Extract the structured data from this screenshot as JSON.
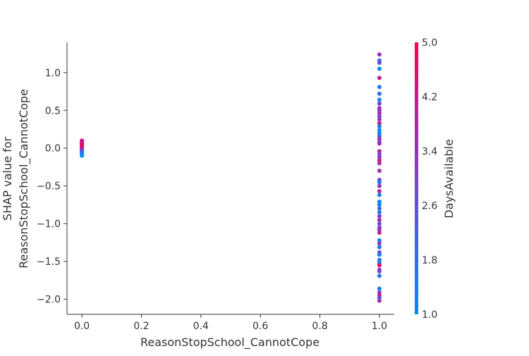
{
  "chart_data": {
    "type": "scatter",
    "title": "",
    "xlabel": "ReasonStopSchool_CannotCope",
    "ylabel_lines": [
      "SHAP value for",
      "ReasonStopSchool_CannotCope"
    ],
    "xlim": [
      -0.05,
      1.05
    ],
    "ylim": [
      -2.2,
      1.4
    ],
    "x_ticks": [
      0.0,
      0.2,
      0.4,
      0.6,
      0.8,
      1.0
    ],
    "x_tick_labels": [
      "0.0",
      "0.2",
      "0.4",
      "0.6",
      "0.8",
      "1.0"
    ],
    "y_ticks": [
      1.0,
      0.5,
      0.0,
      -0.5,
      -1.0,
      -1.5,
      -2.0
    ],
    "y_tick_labels": [
      "1.0",
      "0.5",
      "0.0",
      "−0.5",
      "−1.0",
      "−1.5",
      "−2.0"
    ],
    "grid": false,
    "colorbar": {
      "label": "DaysAvailable",
      "range": [
        1.0,
        5.0
      ],
      "ticks": [
        5.0,
        4.2,
        3.4,
        2.6,
        1.8,
        1.0
      ],
      "tick_labels": [
        "5.0",
        "4.2",
        "3.4",
        "2.6",
        "1.8",
        "1.0"
      ],
      "colors": [
        "#008bfb",
        "#7b41d6",
        "#ff0052"
      ]
    },
    "points": [
      {
        "x": 0,
        "y": 0.1,
        "c": 4.6
      },
      {
        "x": 0,
        "y": 0.09,
        "c": 3.4
      },
      {
        "x": 0,
        "y": 0.08,
        "c": 5.0
      },
      {
        "x": 0,
        "y": 0.07,
        "c": 4.5
      },
      {
        "x": 0,
        "y": 0.06,
        "c": 3.0
      },
      {
        "x": 0,
        "y": 0.05,
        "c": 4.8
      },
      {
        "x": 0,
        "y": 0.04,
        "c": 4.9
      },
      {
        "x": 0,
        "y": 0.03,
        "c": 5.0
      },
      {
        "x": 0,
        "y": 0.02,
        "c": 4.2
      },
      {
        "x": 0,
        "y": 0.01,
        "c": 4.7
      },
      {
        "x": 0,
        "y": 0.0,
        "c": 5.0
      },
      {
        "x": 0,
        "y": -0.01,
        "c": 3.6
      },
      {
        "x": 0,
        "y": -0.02,
        "c": 4.4
      },
      {
        "x": 0,
        "y": -0.03,
        "c": 2.8
      },
      {
        "x": 0,
        "y": -0.04,
        "c": 3.2
      },
      {
        "x": 0,
        "y": -0.05,
        "c": 2.4
      },
      {
        "x": 0,
        "y": -0.06,
        "c": 1.8
      },
      {
        "x": 0,
        "y": -0.08,
        "c": 1.4
      },
      {
        "x": 0,
        "y": -0.1,
        "c": 1.0
      },
      {
        "x": 1,
        "y": 1.24,
        "c": 3.4
      },
      {
        "x": 1,
        "y": 1.16,
        "c": 2.2
      },
      {
        "x": 1,
        "y": 1.13,
        "c": 2.6
      },
      {
        "x": 1,
        "y": 1.05,
        "c": 1.0
      },
      {
        "x": 1,
        "y": 0.93,
        "c": 4.0
      },
      {
        "x": 1,
        "y": 0.81,
        "c": 1.4
      },
      {
        "x": 1,
        "y": 0.72,
        "c": 1.8
      },
      {
        "x": 1,
        "y": 0.64,
        "c": 1.2
      },
      {
        "x": 1,
        "y": 0.59,
        "c": 3.0
      },
      {
        "x": 1,
        "y": 0.53,
        "c": 3.6
      },
      {
        "x": 1,
        "y": 0.5,
        "c": 3.2
      },
      {
        "x": 1,
        "y": 0.46,
        "c": 3.8
      },
      {
        "x": 1,
        "y": 0.42,
        "c": 2.8
      },
      {
        "x": 1,
        "y": 0.38,
        "c": 3.4
      },
      {
        "x": 1,
        "y": 0.33,
        "c": 4.2
      },
      {
        "x": 1,
        "y": 0.29,
        "c": 1.6
      },
      {
        "x": 1,
        "y": 0.24,
        "c": 1.0
      },
      {
        "x": 1,
        "y": 0.2,
        "c": 1.2
      },
      {
        "x": 1,
        "y": 0.16,
        "c": 2.0
      },
      {
        "x": 1,
        "y": 0.12,
        "c": 3.6
      },
      {
        "x": 1,
        "y": 0.08,
        "c": 3.0
      },
      {
        "x": 1,
        "y": 0.06,
        "c": 3.4
      },
      {
        "x": 1,
        "y": -0.04,
        "c": 3.8
      },
      {
        "x": 1,
        "y": -0.08,
        "c": 3.2
      },
      {
        "x": 1,
        "y": -0.12,
        "c": 3.0
      },
      {
        "x": 1,
        "y": -0.16,
        "c": 4.2
      },
      {
        "x": 1,
        "y": -0.2,
        "c": 3.6
      },
      {
        "x": 1,
        "y": -0.3,
        "c": 3.4
      },
      {
        "x": 1,
        "y": -0.42,
        "c": 3.0
      },
      {
        "x": 1,
        "y": -0.45,
        "c": 1.6
      },
      {
        "x": 1,
        "y": -0.5,
        "c": 3.2
      },
      {
        "x": 1,
        "y": -0.57,
        "c": 4.0
      },
      {
        "x": 1,
        "y": -0.62,
        "c": 1.4
      },
      {
        "x": 1,
        "y": -0.71,
        "c": 1.0
      },
      {
        "x": 1,
        "y": -0.75,
        "c": 1.2
      },
      {
        "x": 1,
        "y": -0.8,
        "c": 1.8
      },
      {
        "x": 1,
        "y": -0.85,
        "c": 1.4
      },
      {
        "x": 1,
        "y": -0.9,
        "c": 3.2
      },
      {
        "x": 1,
        "y": -0.95,
        "c": 3.6
      },
      {
        "x": 1,
        "y": -1.0,
        "c": 2.8
      },
      {
        "x": 1,
        "y": -1.05,
        "c": 3.0
      },
      {
        "x": 1,
        "y": -1.08,
        "c": 3.4
      },
      {
        "x": 1,
        "y": -1.12,
        "c": 4.0
      },
      {
        "x": 1,
        "y": -1.22,
        "c": 1.2
      },
      {
        "x": 1,
        "y": -1.26,
        "c": 3.2
      },
      {
        "x": 1,
        "y": -1.31,
        "c": 1.6
      },
      {
        "x": 1,
        "y": -1.38,
        "c": 3.0
      },
      {
        "x": 1,
        "y": -1.41,
        "c": 1.4
      },
      {
        "x": 1,
        "y": -1.48,
        "c": 1.8
      },
      {
        "x": 1,
        "y": -1.52,
        "c": 1.0
      },
      {
        "x": 1,
        "y": -1.55,
        "c": 4.6
      },
      {
        "x": 1,
        "y": -1.61,
        "c": 3.6
      },
      {
        "x": 1,
        "y": -1.63,
        "c": 3.0
      },
      {
        "x": 1,
        "y": -1.69,
        "c": 1.6
      },
      {
        "x": 1,
        "y": -1.86,
        "c": 1.2
      },
      {
        "x": 1,
        "y": -1.91,
        "c": 3.2
      },
      {
        "x": 1,
        "y": -1.95,
        "c": 4.4
      },
      {
        "x": 1,
        "y": -1.98,
        "c": 2.4
      },
      {
        "x": 1,
        "y": -2.02,
        "c": 3.6
      }
    ]
  }
}
